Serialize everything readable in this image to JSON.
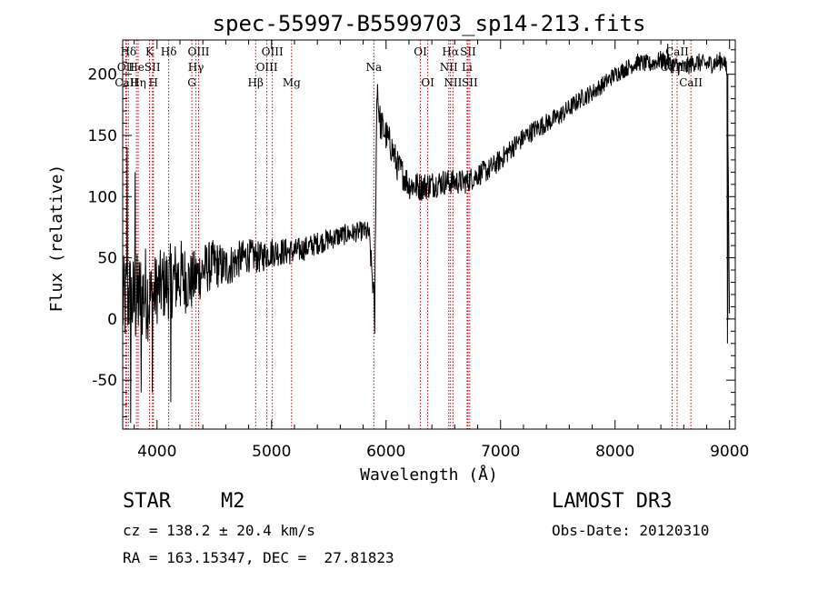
{
  "chart_data": {
    "type": "line",
    "title": "spec-55997-B5599703_sp14-213.fits",
    "xlabel": "Wavelength (Å)",
    "ylabel": "Flux (relative)",
    "xlim": [
      3700,
      9050
    ],
    "ylim": [
      -90,
      228
    ],
    "xticks": [
      4000,
      5000,
      6000,
      7000,
      8000,
      9000
    ],
    "yticks": [
      -50,
      0,
      50,
      100,
      150,
      200
    ],
    "series": [
      {
        "name": "spectrum",
        "color": "#000000",
        "trend": [
          [
            3700,
            10
          ],
          [
            3750,
            20
          ],
          [
            3800,
            12
          ],
          [
            3850,
            18
          ],
          [
            3900,
            22
          ],
          [
            3950,
            15
          ],
          [
            4000,
            25
          ],
          [
            4100,
            30
          ],
          [
            4200,
            35
          ],
          [
            4300,
            30
          ],
          [
            4400,
            40
          ],
          [
            4500,
            45
          ],
          [
            4600,
            42
          ],
          [
            4700,
            48
          ],
          [
            4800,
            52
          ],
          [
            4900,
            50
          ],
          [
            5000,
            55
          ],
          [
            5100,
            55
          ],
          [
            5200,
            55
          ],
          [
            5300,
            58
          ],
          [
            5400,
            62
          ],
          [
            5500,
            65
          ],
          [
            5600,
            68
          ],
          [
            5700,
            70
          ],
          [
            5800,
            72
          ],
          [
            5850,
            70
          ],
          [
            5900,
            10
          ],
          [
            5920,
            185
          ],
          [
            5950,
            160
          ],
          [
            6000,
            150
          ],
          [
            6050,
            140
          ],
          [
            6100,
            125
          ],
          [
            6150,
            118
          ],
          [
            6200,
            110
          ],
          [
            6300,
            108
          ],
          [
            6400,
            110
          ],
          [
            6500,
            112
          ],
          [
            6600,
            112
          ],
          [
            6700,
            112
          ],
          [
            6800,
            118
          ],
          [
            6900,
            122
          ],
          [
            7000,
            130
          ],
          [
            7100,
            140
          ],
          [
            7200,
            148
          ],
          [
            7300,
            155
          ],
          [
            7400,
            160
          ],
          [
            7500,
            165
          ],
          [
            7600,
            172
          ],
          [
            7700,
            180
          ],
          [
            7800,
            185
          ],
          [
            7900,
            192
          ],
          [
            8000,
            200
          ],
          [
            8100,
            205
          ],
          [
            8200,
            210
          ],
          [
            8300,
            208
          ],
          [
            8400,
            212
          ],
          [
            8500,
            208
          ],
          [
            8600,
            205
          ],
          [
            8700,
            210
          ],
          [
            8800,
            208
          ],
          [
            8900,
            210
          ],
          [
            8950,
            212
          ],
          [
            8980,
            200
          ],
          [
            9000,
            0
          ]
        ],
        "noise": [
          [
            3700,
            40
          ],
          [
            3900,
            40
          ],
          [
            4000,
            30
          ],
          [
            4200,
            32
          ],
          [
            4300,
            25
          ],
          [
            4500,
            20
          ],
          [
            4800,
            14
          ],
          [
            5300,
            10
          ],
          [
            5800,
            8
          ],
          [
            5950,
            14
          ],
          [
            6300,
            12
          ],
          [
            6700,
            10
          ],
          [
            7000,
            9
          ],
          [
            8000,
            7
          ],
          [
            9000,
            8
          ]
        ],
        "spikes": [
          [
            3740,
            140
          ],
          [
            3770,
            -85
          ],
          [
            3810,
            120
          ],
          [
            3860,
            -60
          ],
          [
            3960,
            -60
          ],
          [
            4120,
            -68
          ],
          [
            5900,
            -12
          ],
          [
            5925,
            192
          ],
          [
            8460,
            225
          ],
          [
            8980,
            -20
          ]
        ]
      }
    ],
    "lines": [
      {
        "label": "Hδ",
        "x": 3750,
        "row": 1
      },
      {
        "label": "OII",
        "x": 3727,
        "row": 2
      },
      {
        "label": "CaII",
        "x": 3733,
        "row": 3
      },
      {
        "label": "He",
        "x": 3820,
        "row": 2
      },
      {
        "label": "Hη",
        "x": 3835,
        "row": 3
      },
      {
        "label": "K",
        "x": 3934,
        "row": 1
      },
      {
        "label": "SII",
        "x": 3960,
        "row": 2
      },
      {
        "label": "H",
        "x": 3968,
        "row": 3
      },
      {
        "label": "Hδ",
        "x": 4102,
        "row": 1
      },
      {
        "label": "OIII",
        "x": 4363,
        "row": 1
      },
      {
        "label": "Hγ",
        "x": 4340,
        "row": 2
      },
      {
        "label": "G",
        "x": 4304,
        "row": 3
      },
      {
        "label": "Hβ",
        "x": 4861,
        "row": 3
      },
      {
        "label": "OIII",
        "x": 5007,
        "row": 1
      },
      {
        "label": "OIII",
        "x": 4959,
        "row": 2
      },
      {
        "label": "Mg",
        "x": 5175,
        "row": 3
      },
      {
        "label": "Na",
        "x": 5893,
        "row": 2
      },
      {
        "label": "OI",
        "x": 6300,
        "row": 1
      },
      {
        "label": "OI",
        "x": 6364,
        "row": 3
      },
      {
        "label": "Hα",
        "x": 6563,
        "row": 1
      },
      {
        "label": "SII",
        "x": 6716,
        "row": 1
      },
      {
        "label": "NII",
        "x": 6548,
        "row": 2
      },
      {
        "label": "Li",
        "x": 6708,
        "row": 2
      },
      {
        "label": "NII",
        "x": 6584,
        "row": 3
      },
      {
        "label": "SII",
        "x": 6731,
        "row": 3
      },
      {
        "label": "CaII",
        "x": 8542,
        "row": 1
      },
      {
        "label": "CaII",
        "x": 8498,
        "row": 2
      },
      {
        "label": "CaII",
        "x": 8662,
        "row": 3
      }
    ]
  },
  "info": {
    "object_class": "STAR",
    "subclass": "M2",
    "survey": "LAMOST DR3",
    "cz": "cz = 138.2 ± 20.4 km/s",
    "obs_date": "Obs-Date: 20120310",
    "coords": "RA = 163.15347, DEC =  27.81823"
  }
}
